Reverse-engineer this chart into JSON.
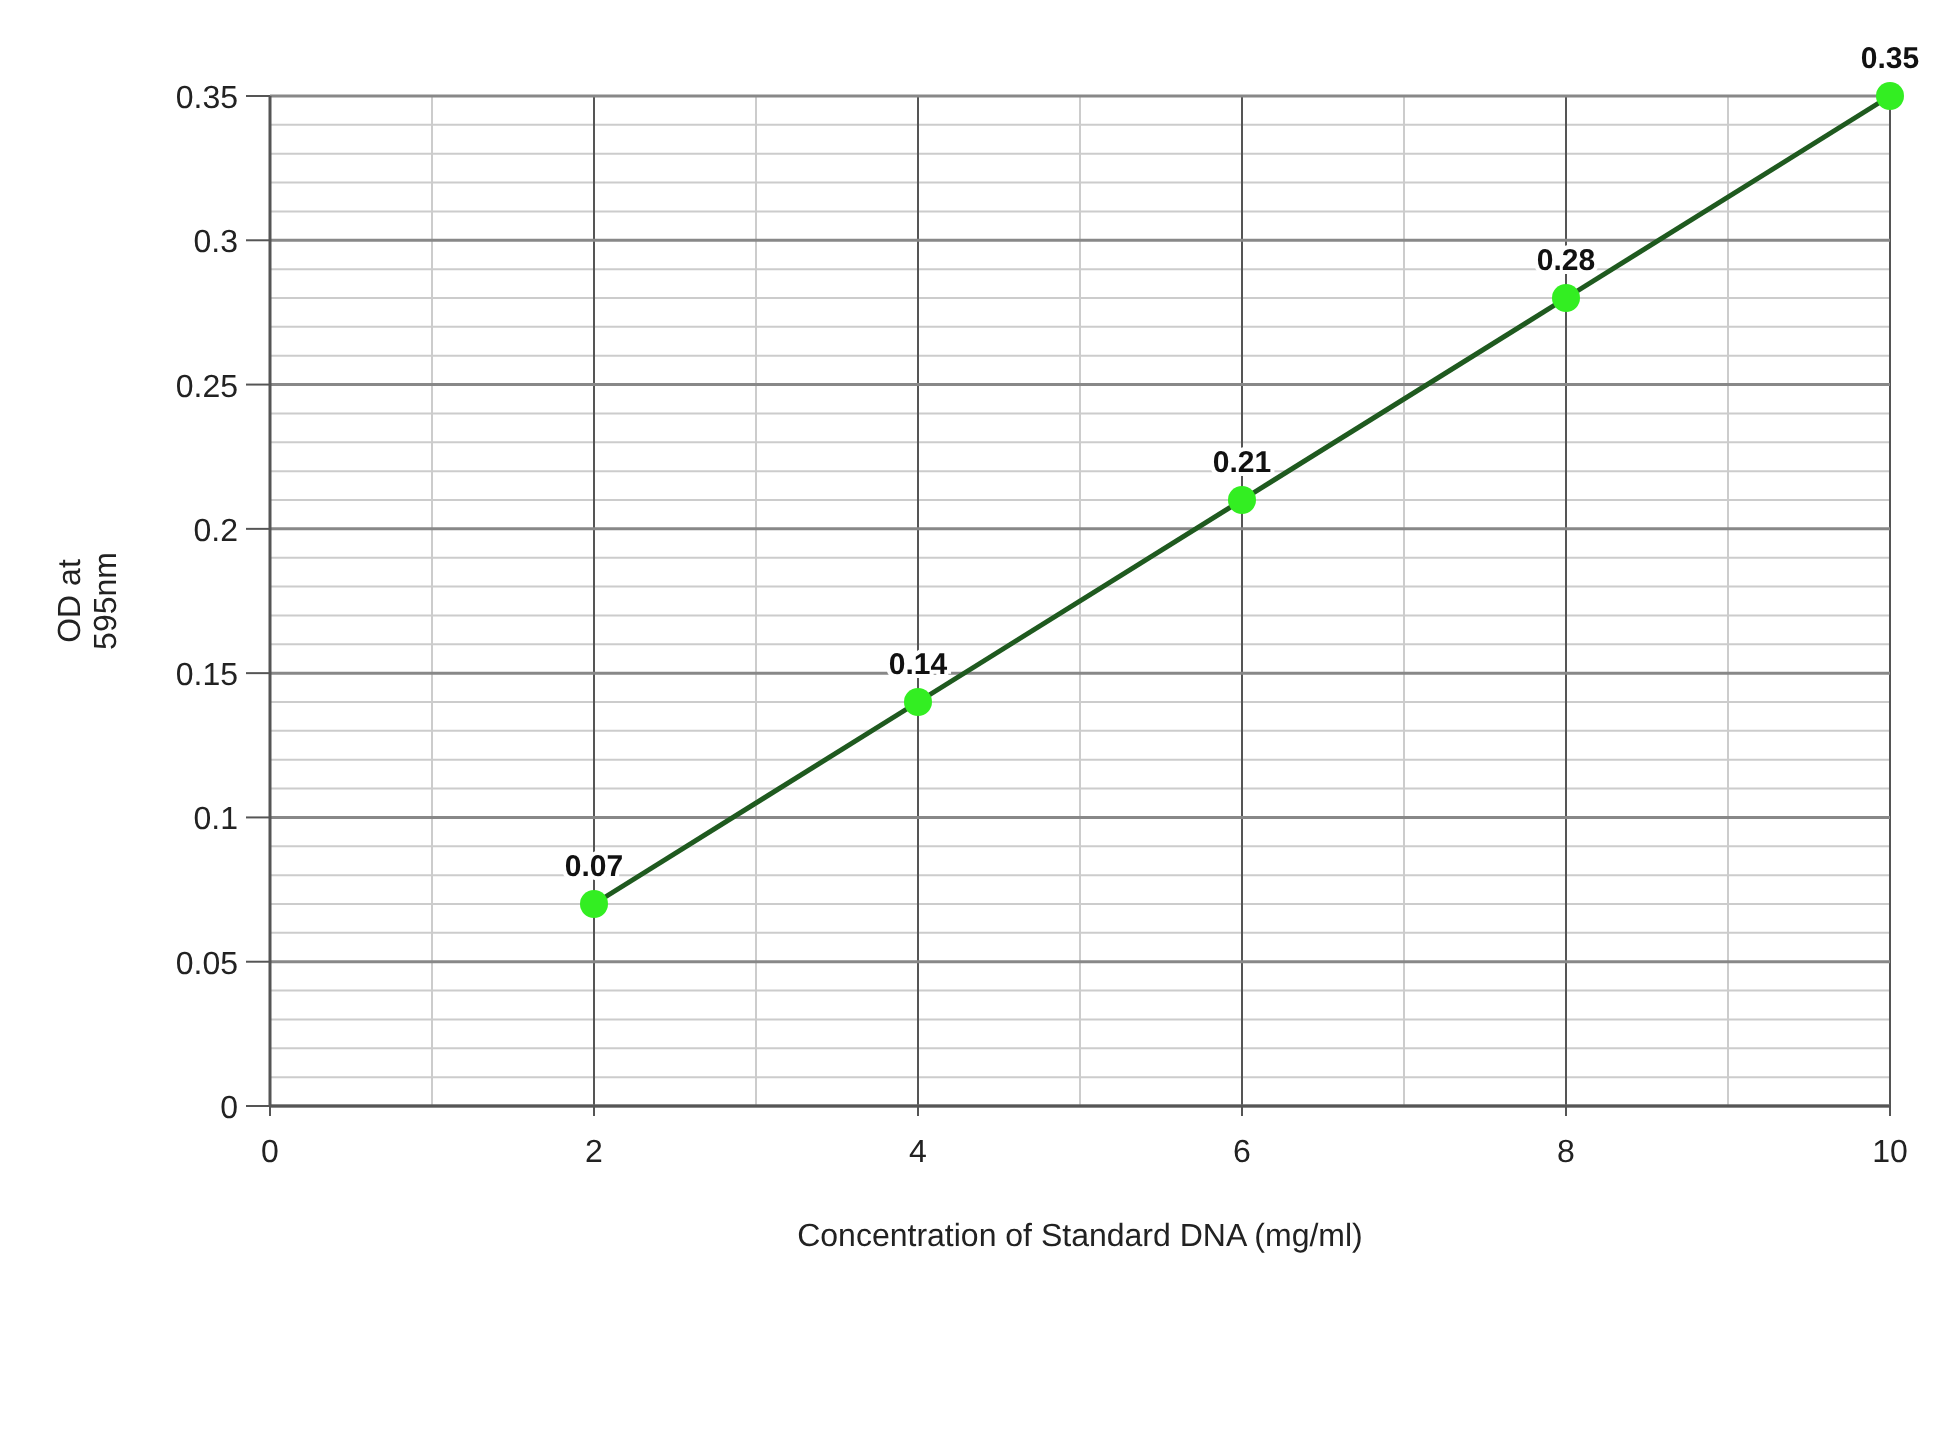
{
  "chart_data": {
    "type": "line",
    "xlabel": "Concentration of Standard DNA (mg/ml)",
    "ylabel": "OD at\n595nm",
    "x": [
      2,
      4,
      6,
      8,
      10
    ],
    "series": [
      {
        "color": "#1f5a1f",
        "marker": "none",
        "values": [
          0.07,
          0.14,
          0.21,
          0.28,
          0.35
        ]
      },
      {
        "type": "scatter",
        "color": "#33ee22",
        "values": [
          0.07,
          0.14,
          0.21,
          0.28,
          0.35
        ],
        "value_labels": [
          "0.07",
          "0.14",
          "0.21",
          "0.28",
          "0.35"
        ]
      }
    ],
    "marker": "circle",
    "line_style": "solid",
    "xlim": [
      0,
      10
    ],
    "xticks": [
      0,
      2,
      4,
      6,
      8,
      10
    ],
    "ylim": [
      0,
      0.35
    ],
    "yticks": [
      0,
      0.05,
      0.1,
      0.15,
      0.2,
      0.25,
      0.3,
      0.35
    ],
    "grid": true
  }
}
